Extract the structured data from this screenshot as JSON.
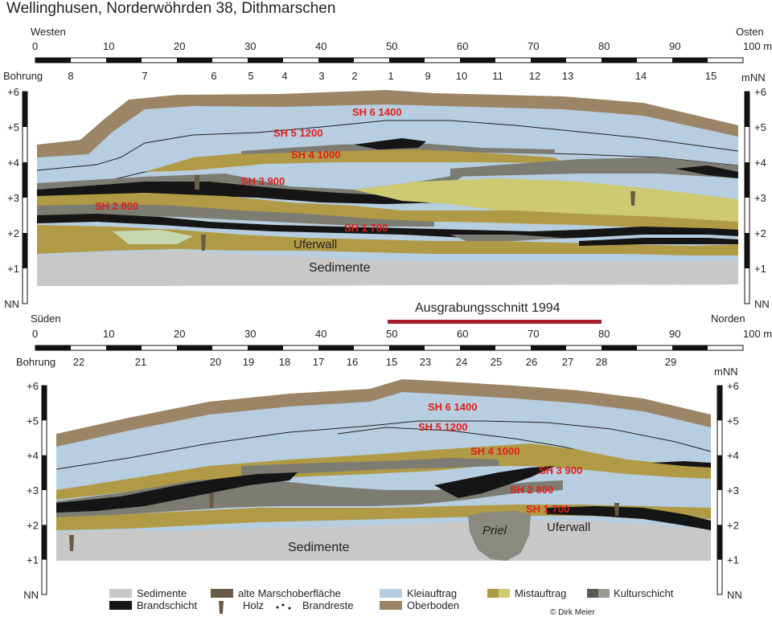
{
  "title": "Wellinghusen, Norderwöhrden 38, Dithmarschen",
  "section1": {
    "left_dir": "Westen",
    "right_dir": "Osten",
    "scale_ticks": [
      "0",
      "10",
      "20",
      "30",
      "40",
      "50",
      "60",
      "70",
      "80",
      "90",
      "100 m"
    ],
    "bohrung_label": "Bohrung",
    "bohrungen": [
      "8",
      "7",
      "6",
      "5",
      "4",
      "3",
      "2",
      "1",
      "9",
      "10",
      "11",
      "12",
      "13",
      "14",
      "15"
    ],
    "axis_unit": "mNN",
    "axis_ticks": [
      "+6",
      "+5",
      "+4",
      "+3",
      "+2",
      "+1",
      "NN"
    ],
    "phase_labels": [
      "SH 6 1400",
      "SH 5 1200",
      "SH 4 1000",
      "SH 3 900",
      "SH 2 800",
      "SH 1 700"
    ],
    "uferwall": "Uferwall",
    "sedimente": "Sedimente"
  },
  "ausgrabung_label": "Ausgrabungsschnitt 1994",
  "section2": {
    "left_dir": "Süden",
    "right_dir": "Norden",
    "scale_ticks": [
      "0",
      "10",
      "20",
      "30",
      "40",
      "50",
      "60",
      "70",
      "80",
      "90",
      "100 m"
    ],
    "bohrung_label": "Bohrung",
    "bohrungen": [
      "22",
      "21",
      "20",
      "19",
      "18",
      "17",
      "16",
      "15",
      "23",
      "24",
      "25",
      "26",
      "27",
      "28",
      "29"
    ],
    "axis_unit": "mNN",
    "axis_ticks": [
      "+6",
      "+5",
      "+4",
      "+3",
      "+2",
      "+1",
      "NN"
    ],
    "phase_labels": [
      "SH 6 1400",
      "SH 5 1200",
      "SH 4 1000",
      "SH 3 900",
      "SH 2 800",
      "SH 1 700"
    ],
    "priel": "Priel",
    "uferwall": "Uferwall",
    "sedimente": "Sedimente"
  },
  "legend": {
    "sedimente": "Sedimente",
    "brandschicht": "Brandschicht",
    "alte_marsch": "alte Marschoberfläche",
    "holz": "Holz",
    "brandreste": "Brandreste",
    "kleiauftrag": "Kleiauftrag",
    "oberboden": "Oberboden",
    "mistauftrag": "Mistauftrag",
    "kulturschicht": "Kulturschicht"
  },
  "copyright": "© Dirk Meier",
  "colors": {
    "sediment": "#c8c8c8",
    "oberboden": "#9c8466",
    "klei": "#b7cde0",
    "mist": "#b09a45",
    "mist_light": "#cdca72",
    "kultur": "#7c7c72",
    "brand": "#151515",
    "marsch": "#6b5a45",
    "label_red": "#e0201a",
    "excavation_bar": "#a81e2a"
  }
}
